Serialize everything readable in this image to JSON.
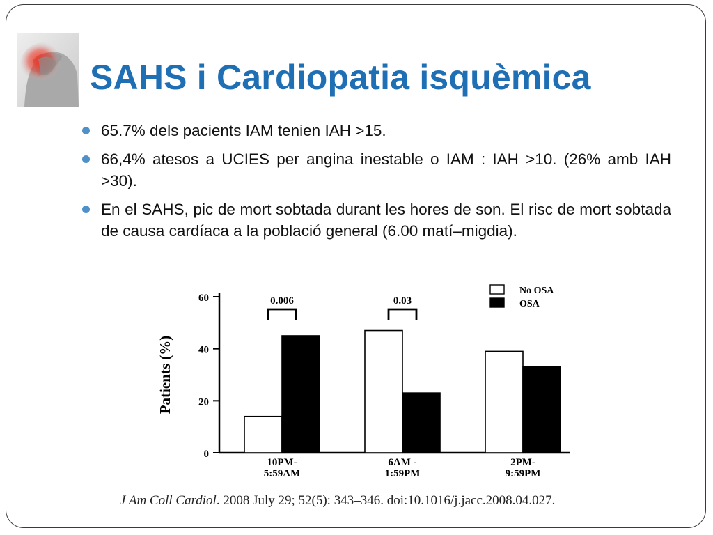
{
  "slide": {
    "title": "SAHS i Cardiopatia isquèmica",
    "bullets": [
      "65.7% dels pacients IAM tenien IAH >15.",
      "66,4% atesos a UCIES per angina inestable o IAM : IAH >10. (26% amb IAH >30).",
      "En el SAHS, pic de mort sobtada durant les hores de son. El risc de mort sobtada de causa cardíaca a la població general (6.00 matí–migdia)."
    ],
    "citation_journal": "J Am Coll Cardiol",
    "citation_rest": ". 2008 July 29; 52(5): 343–346. doi:10.1016/j.jacc.2008.04.027.",
    "colors": {
      "title": "#1f6fb5",
      "bullet": "#4f90c8",
      "frame": "#3a3a3a"
    },
    "icons": {
      "photo": "chest-pain-photo-icon"
    }
  },
  "chart_data": {
    "type": "bar",
    "categories": [
      [
        "10PM-",
        "5:59AM"
      ],
      [
        "6AM -",
        "1:59PM"
      ],
      [
        "2PM-",
        "9:59PM"
      ]
    ],
    "series": [
      {
        "name": "No OSA",
        "values": [
          14,
          47,
          39
        ],
        "fill": "#ffffff"
      },
      {
        "name": "OSA",
        "values": [
          45,
          23,
          33
        ],
        "fill": "#000000"
      }
    ],
    "ylabel": "Patients (%)",
    "xlabel": "",
    "ylim": [
      0,
      60
    ],
    "yticks": [
      0,
      20,
      40,
      60
    ],
    "annotations": [
      {
        "category_index": 0,
        "text": "0.006"
      },
      {
        "category_index": 1,
        "text": "0.03"
      }
    ],
    "legend_position": "top-right",
    "grid": false
  }
}
